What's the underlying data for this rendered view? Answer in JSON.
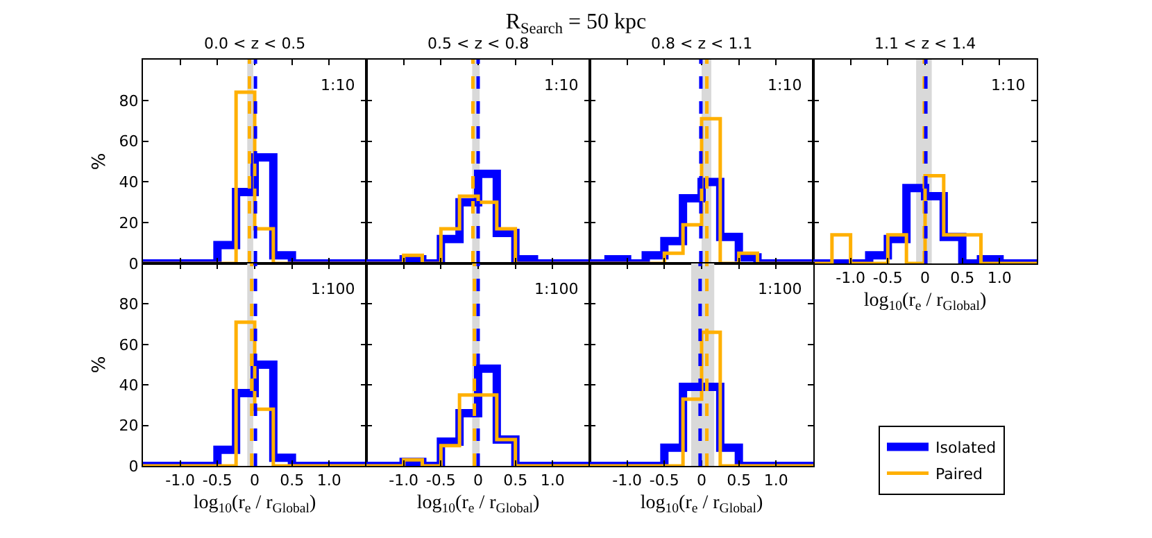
{
  "chart_data": [
    {
      "type": "histogram",
      "subtitle": "0.0 < z < 0.5",
      "ylabel": "%",
      "annotations": [
        "1:10"
      ],
      "tick_labels": "y",
      "legend": false,
      "xlim": [
        -1.5,
        1.5
      ],
      "ylim": [
        0,
        100
      ],
      "xticks": [
        {
          "value": -1,
          "label": null
        },
        {
          "value": -0.5,
          "label": null
        },
        {
          "value": 0,
          "label": null
        },
        {
          "value": 0.5,
          "label": null
        },
        {
          "value": 1,
          "label": null
        }
      ],
      "yticks": [
        0,
        20,
        40,
        60,
        80
      ],
      "bins": [
        -1.5,
        -1.25,
        -1,
        -0.75,
        -0.5,
        -0.25,
        0,
        0.25,
        0.5,
        0.75,
        1,
        1.25,
        1.5
      ],
      "series": [
        {
          "color": "#0000ff",
          "values": [
            0,
            0,
            0,
            0,
            9,
            35,
            52,
            4,
            0,
            0,
            0,
            0
          ]
        },
        {
          "color": "#ffb000",
          "values": [
            0,
            0,
            0,
            0,
            0,
            84,
            17,
            0,
            0,
            0,
            0,
            0
          ]
        }
      ],
      "bands": [
        {
          "axis": "x",
          "from": -0.1,
          "to": -0.02,
          "color": "#d9d9d9"
        }
      ],
      "ref_lines": [
        {
          "axis": "x",
          "value": -0.07,
          "color": "#ffb000",
          "line_style": "dashed"
        },
        {
          "axis": "x",
          "value": 0.01,
          "color": "#0000ff",
          "line_style": "dashed"
        }
      ]
    },
    {
      "type": "histogram",
      "title": "R$_{Search}$ = 50 kpc",
      "subtitle": "0.5 < z < 0.8",
      "annotations": [
        "1:10"
      ],
      "tick_labels": false,
      "legend": false,
      "xlim": [
        -1.5,
        1.5
      ],
      "ylim": [
        0,
        100
      ],
      "xticks": [
        {
          "value": -1,
          "label": null
        },
        {
          "value": -0.5,
          "label": null
        },
        {
          "value": 0,
          "label": null
        },
        {
          "value": 0.5,
          "label": null
        },
        {
          "value": 1,
          "label": null
        }
      ],
      "yticks": [
        {
          "value": 0,
          "label": null
        },
        {
          "value": 20,
          "label": null
        },
        {
          "value": 40,
          "label": null
        },
        {
          "value": 60,
          "label": null
        },
        {
          "value": 80,
          "label": null
        }
      ],
      "bins": [
        -1.5,
        -1.25,
        -1,
        -0.75,
        -0.5,
        -0.25,
        0,
        0.25,
        0.5,
        0.75,
        1,
        1.25,
        1.5
      ],
      "series": [
        {
          "color": "#0000ff",
          "values": [
            0,
            0,
            2,
            0,
            12,
            30,
            44,
            15,
            2,
            0,
            0,
            0
          ]
        },
        {
          "color": "#ffb000",
          "values": [
            0,
            0,
            4,
            0,
            17,
            33,
            30,
            17,
            0,
            0,
            0,
            0
          ]
        }
      ],
      "bands": [
        {
          "axis": "x",
          "from": -0.08,
          "to": 0.02,
          "color": "#d9d9d9"
        }
      ],
      "ref_lines": [
        {
          "axis": "x",
          "value": -0.07,
          "color": "#ffb000",
          "line_style": "dashed"
        },
        {
          "axis": "x",
          "value": 0,
          "color": "#0000ff",
          "line_style": "dashed"
        }
      ]
    },
    {
      "type": "histogram",
      "subtitle": "0.8 < z < 1.1",
      "annotations": [
        "1:10"
      ],
      "tick_labels": false,
      "legend": false,
      "xlim": [
        -1.5,
        1.5
      ],
      "ylim": [
        0,
        100
      ],
      "xticks": [
        {
          "value": -1,
          "label": null
        },
        {
          "value": -0.5,
          "label": null
        },
        {
          "value": 0,
          "label": null
        },
        {
          "value": 0.5,
          "label": null
        },
        {
          "value": 1,
          "label": null
        }
      ],
      "yticks": [
        {
          "value": 0,
          "label": null
        },
        {
          "value": 20,
          "label": null
        },
        {
          "value": 40,
          "label": null
        },
        {
          "value": 60,
          "label": null
        },
        {
          "value": 80,
          "label": null
        }
      ],
      "bins": [
        -1.5,
        -1.25,
        -1,
        -0.75,
        -0.5,
        -0.25,
        0,
        0.25,
        0.5,
        0.75,
        1,
        1.25,
        1.5
      ],
      "series": [
        {
          "color": "#0000ff",
          "values": [
            0,
            2,
            0,
            4,
            11,
            32,
            40,
            13,
            3,
            0,
            0,
            0
          ]
        },
        {
          "color": "#ffb000",
          "values": [
            0,
            0,
            0,
            0,
            5,
            19,
            71,
            0,
            5,
            0,
            0,
            0
          ]
        }
      ],
      "bands": [
        {
          "axis": "x",
          "from": 0,
          "to": 0.13,
          "color": "#d9d9d9"
        }
      ],
      "ref_lines": [
        {
          "axis": "x",
          "value": -0.01,
          "color": "#0000ff",
          "line_style": "dashed"
        },
        {
          "axis": "x",
          "value": 0.07,
          "color": "#ffb000",
          "line_style": "dashed"
        }
      ]
    },
    {
      "type": "histogram",
      "subtitle": "1.1 < z < 1.4",
      "xlabel": "log$_{10}$(r$_{e}$ / r$_{Global}$)",
      "annotations": [
        "1:10"
      ],
      "tick_labels": "x",
      "legend": false,
      "xlim": [
        -1.5,
        1.5
      ],
      "ylim": [
        0,
        100
      ],
      "xticks": [
        {
          "value": -1,
          "label": "-1.0"
        },
        {
          "value": -0.5,
          "label": "-0.5"
        },
        {
          "value": 0,
          "label": "0"
        },
        {
          "value": 0.5,
          "label": "0.5"
        },
        {
          "value": 1,
          "label": "1.0"
        }
      ],
      "yticks": [
        {
          "value": 0,
          "label": null
        },
        {
          "value": 20,
          "label": null
        },
        {
          "value": 40,
          "label": null
        },
        {
          "value": 60,
          "label": null
        },
        {
          "value": 80,
          "label": null
        }
      ],
      "bins": [
        -1.5,
        -1.25,
        -1,
        -0.75,
        -0.5,
        -0.25,
        0,
        0.25,
        0.5,
        0.75,
        1,
        1.25,
        1.5
      ],
      "series": [
        {
          "color": "#0000ff",
          "values": [
            0,
            0,
            0,
            4,
            12,
            37,
            33,
            13,
            0,
            2,
            0,
            0
          ]
        },
        {
          "color": "#ffb000",
          "values": [
            0,
            14,
            0,
            0,
            14,
            0,
            43,
            14,
            14,
            0,
            0,
            0
          ]
        }
      ],
      "bands": [
        {
          "axis": "x",
          "from": -0.12,
          "to": 0.09,
          "color": "#d9d9d9"
        }
      ],
      "ref_lines": [
        {
          "axis": "x",
          "value": -0.01,
          "color": "#ffb000",
          "line_style": "dashed"
        },
        {
          "axis": "x",
          "value": 0.01,
          "color": "#0000ff",
          "line_style": "dashed"
        }
      ]
    },
    {
      "type": "histogram",
      "xlabel": "log$_{10}$(r$_{e}$ / r$_{Global}$)",
      "ylabel": "%",
      "annotations": [
        "1:100"
      ],
      "legend": false,
      "xlim": [
        -1.5,
        1.5
      ],
      "ylim": [
        0,
        100
      ],
      "xticks": [
        {
          "value": -1,
          "label": "-1.0"
        },
        {
          "value": -0.5,
          "label": "-0.5"
        },
        {
          "value": 0,
          "label": "0"
        },
        {
          "value": 0.5,
          "label": "0.5"
        },
        {
          "value": 1,
          "label": "1.0"
        }
      ],
      "yticks": [
        0,
        20,
        40,
        60,
        80
      ],
      "bins": [
        -1.5,
        -1.25,
        -1,
        -0.75,
        -0.5,
        -0.25,
        0,
        0.25,
        0.5,
        0.75,
        1,
        1.25,
        1.5
      ],
      "series": [
        {
          "color": "#0000ff",
          "values": [
            0,
            0,
            0,
            0,
            8,
            36,
            50,
            4,
            0,
            0,
            0,
            0
          ]
        },
        {
          "color": "#ffb000",
          "values": [
            0,
            0,
            0,
            0,
            0,
            71,
            28,
            0,
            0,
            0,
            0,
            0
          ]
        }
      ],
      "bands": [
        {
          "axis": "x",
          "from": -0.1,
          "to": -0.02,
          "color": "#d9d9d9"
        }
      ],
      "ref_lines": [
        {
          "axis": "x",
          "value": -0.04,
          "color": "#ffb000",
          "line_style": "dashed"
        },
        {
          "axis": "x",
          "value": 0.01,
          "color": "#0000ff",
          "line_style": "dashed"
        }
      ]
    },
    {
      "type": "histogram",
      "xlabel": "log$_{10}$(r$_{e}$ / r$_{Global}$)",
      "annotations": [
        "1:100"
      ],
      "tick_labels": "x",
      "legend": false,
      "xlim": [
        -1.5,
        1.5
      ],
      "ylim": [
        0,
        100
      ],
      "xticks": [
        {
          "value": -1,
          "label": "-1.0"
        },
        {
          "value": -0.5,
          "label": "-0.5"
        },
        {
          "value": 0,
          "label": "0"
        },
        {
          "value": 0.5,
          "label": "0.5"
        },
        {
          "value": 1,
          "label": "1.0"
        }
      ],
      "yticks": [
        {
          "value": 0,
          "label": null
        },
        {
          "value": 20,
          "label": null
        },
        {
          "value": 40,
          "label": null
        },
        {
          "value": 60,
          "label": null
        },
        {
          "value": 80,
          "label": null
        }
      ],
      "bins": [
        -1.5,
        -1.25,
        -1,
        -0.75,
        -0.5,
        -0.25,
        0,
        0.25,
        0.5,
        0.75,
        1,
        1.25,
        1.5
      ],
      "series": [
        {
          "color": "#0000ff",
          "values": [
            0,
            0,
            2,
            0,
            12,
            26,
            48,
            13,
            0,
            0,
            0,
            0
          ]
        },
        {
          "color": "#ffb000",
          "values": [
            0,
            0,
            3,
            0,
            10,
            35,
            35,
            13,
            0,
            0,
            0,
            0
          ]
        }
      ],
      "bands": [
        {
          "axis": "x",
          "from": -0.08,
          "to": 0.02,
          "color": "#d9d9d9"
        }
      ],
      "ref_lines": [
        {
          "axis": "x",
          "value": -0.05,
          "color": "#ffb000",
          "line_style": "dashed"
        },
        {
          "axis": "x",
          "value": 0,
          "color": "#0000ff",
          "line_style": "dashed"
        }
      ]
    },
    {
      "type": "histogram",
      "xlabel": "log$_{10}$(r$_{e}$ / r$_{Global}$)",
      "annotations": [
        "1:100"
      ],
      "tick_labels": "x",
      "legend": "right",
      "xlim": [
        -1.5,
        1.5
      ],
      "ylim": [
        0,
        100
      ],
      "xticks": [
        {
          "value": -1,
          "label": "-1.0"
        },
        {
          "value": -0.5,
          "label": "-0.5"
        },
        {
          "value": 0,
          "label": "0"
        },
        {
          "value": 0.5,
          "label": "0.5"
        },
        {
          "value": 1,
          "label": "1.0"
        }
      ],
      "yticks": [
        {
          "value": 0,
          "label": null
        },
        {
          "value": 20,
          "label": null
        },
        {
          "value": 40,
          "label": null
        },
        {
          "value": 60,
          "label": null
        },
        {
          "value": 80,
          "label": null
        }
      ],
      "bins": [
        -1.5,
        -1.25,
        -1,
        -0.75,
        -0.5,
        -0.25,
        0,
        0.25,
        0.5,
        0.75,
        1,
        1.25,
        1.5
      ],
      "series": [
        {
          "name": "Isolated",
          "color": "#0000ff",
          "values": [
            0,
            0,
            0,
            0,
            9,
            39,
            39,
            9,
            0,
            0,
            0,
            0
          ]
        },
        {
          "name": "Paired",
          "color": "#ffb000",
          "values": [
            0,
            0,
            0,
            0,
            0,
            33,
            66,
            0,
            0,
            0,
            0,
            0
          ]
        }
      ],
      "bands": [
        {
          "axis": "x",
          "from": -0.14,
          "to": 0.17,
          "color": "#d9d9d9"
        }
      ],
      "ref_lines": [
        {
          "axis": "x",
          "value": -0.02,
          "color": "#0000ff",
          "line_style": "dashed"
        },
        {
          "axis": "x",
          "value": 0.07,
          "color": "#ffb000",
          "line_style": "dashed"
        }
      ]
    }
  ]
}
